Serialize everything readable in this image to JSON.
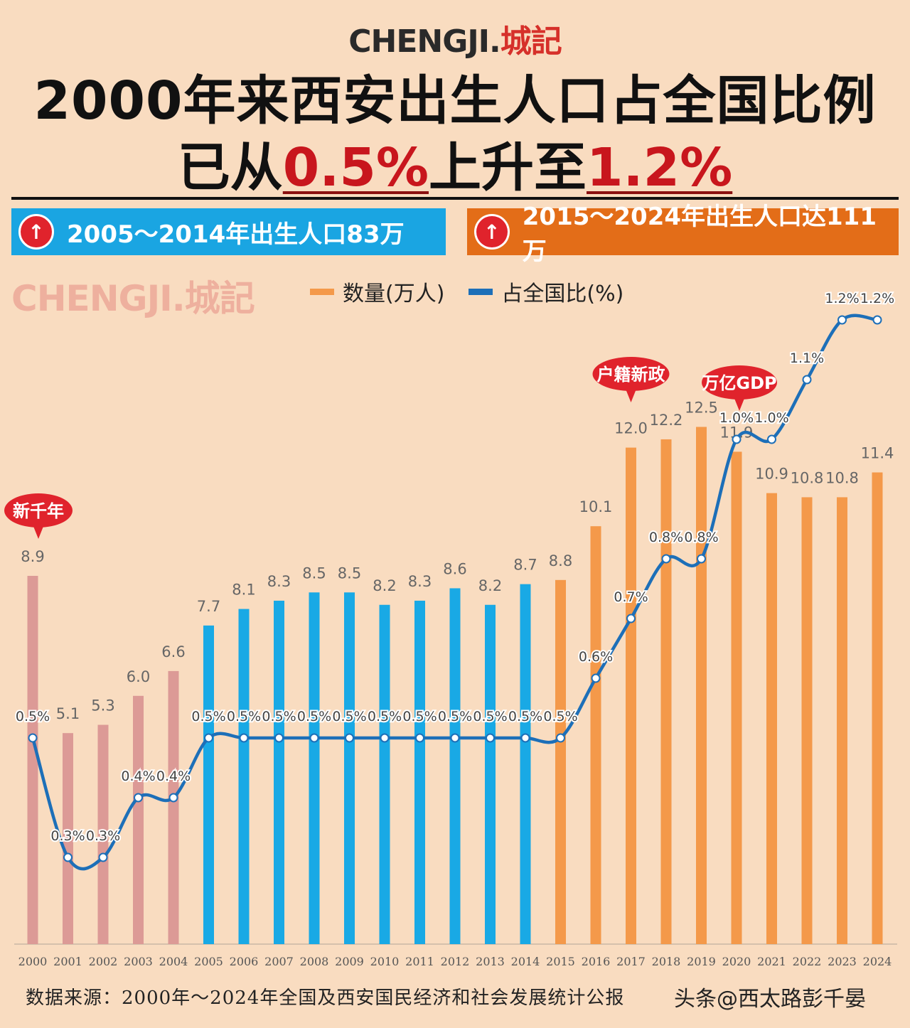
{
  "logo": {
    "latin": "CHENGJI.",
    "cn": "城記"
  },
  "title": {
    "line1": "2000年来西安出生人口占全国比例",
    "line2_prefix": "已从",
    "line2_from": "0.5%",
    "line2_mid": "上升至",
    "line2_to": "1.2%"
  },
  "bands": {
    "left": "2005～2014年出生人口83万",
    "right": "2015～2024年出生人口达111万"
  },
  "watermark": "CHENGJI.城記",
  "legend": {
    "bar_label": "数量(万人)",
    "line_label": "占全国比(%)",
    "bar_color": "#f4994a",
    "line_color": "#1d6fb8"
  },
  "callouts": [
    {
      "text": "新千年",
      "year": "2000"
    },
    {
      "text": "户籍新政",
      "year": "2017"
    },
    {
      "text": "万亿GDP",
      "year": "2020"
    }
  ],
  "footer": "数据来源：2000年～2024年全国及西安国民经济和社会发展统计公报",
  "credit": "头条@西太路彭千晏",
  "chart_data": {
    "type": "bar",
    "title": "2000年来西安出生人口占全国比例",
    "categories": [
      "2000",
      "2001",
      "2002",
      "2003",
      "2004",
      "2005",
      "2006",
      "2007",
      "2008",
      "2009",
      "2010",
      "2011",
      "2012",
      "2013",
      "2014",
      "2015",
      "2016",
      "2017",
      "2018",
      "2019",
      "2020",
      "2021",
      "2022",
      "2023",
      "2024"
    ],
    "series": [
      {
        "name": "数量(万人)",
        "type": "bar",
        "values": [
          8.9,
          5.1,
          5.3,
          6.0,
          6.6,
          7.7,
          8.1,
          8.3,
          8.5,
          8.5,
          8.2,
          8.3,
          8.6,
          8.2,
          8.7,
          8.8,
          10.1,
          12.0,
          12.2,
          12.5,
          11.9,
          10.9,
          10.8,
          10.8,
          11.4
        ]
      },
      {
        "name": "占全国比(%)",
        "type": "line",
        "values": [
          0.5,
          0.3,
          0.3,
          0.4,
          0.4,
          0.5,
          0.5,
          0.5,
          0.5,
          0.5,
          0.5,
          0.5,
          0.5,
          0.5,
          0.5,
          0.5,
          0.6,
          0.7,
          0.8,
          0.8,
          1.0,
          1.0,
          1.1,
          1.2,
          1.2
        ]
      }
    ],
    "bar_group_colors": [
      "#dc9a96",
      "#19a9e5",
      "#f4994a"
    ],
    "legend_position": "top",
    "grid": false
  }
}
